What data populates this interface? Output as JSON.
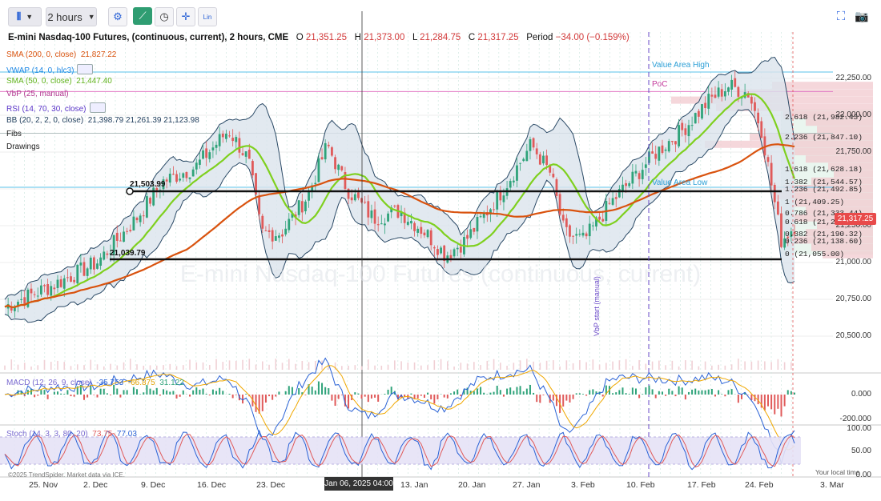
{
  "toolbar": {
    "interval": "2 hours",
    "lin_label": "Lin"
  },
  "title": {
    "symbol": "E-mini Nasdaq-100 Futures, (continuous, current), 2 hours, CME",
    "o_label": "O",
    "o_value": "21,351.25",
    "h_label": "H",
    "h_value": "21,373.00",
    "l_label": "L",
    "l_value": "21,284.75",
    "c_label": "C",
    "c_value": "21,317.25",
    "period_label": "Period",
    "period_value": "−34.00 (−0.159%)"
  },
  "legends": {
    "sma200": "SMA (200, 0, close)",
    "sma200_value": "21,827.22",
    "vwap": "VWAP (14, 0, hlc3)",
    "sma50": "SMA (50, 0, close)",
    "sma50_value": "21,447.40",
    "vbp": "VbP (25, manual)",
    "rsi": "RSI (14, 70, 30, close)",
    "bb": "BB (20, 2, 2, 0, close)",
    "bb_values": "21,398.79  21,261.39  21,123.98",
    "fibs": "Fibs",
    "drawings": "Drawings"
  },
  "watermark": "E-mini Nasdaq-100 Futures (continuous, current)",
  "annotations": {
    "vah": "Value Area High",
    "poc": "PoC",
    "val": "Value Area Low",
    "vbp_start": "VbP start (manual)",
    "level_high": "21,503.99",
    "level_low": "21,039.79"
  },
  "fibs": [
    {
      "label": "2.618 (21,982.43)",
      "price": 21982.43
    },
    {
      "label": "2.236 (21,847.10)",
      "price": 21847.1
    },
    {
      "label": "1.618 (21,628.18)",
      "price": 21628.18
    },
    {
      "label": "1.382 (21,544.57)",
      "price": 21544.57
    },
    {
      "label": "1.236 (21,492.85)",
      "price": 21492.85
    },
    {
      "label": "1 (21,409.25)",
      "price": 21409.25
    },
    {
      "label": "0.786 (21,333.44)",
      "price": 21333.44
    },
    {
      "label": "0.618 (21,273.92)",
      "price": 21273.92
    },
    {
      "label": "0.382 (21,190.32)",
      "price": 21190.32
    },
    {
      "label": "0.236 (21,138.60)",
      "price": 21138.6
    },
    {
      "label": "0 (21,055.00)",
      "price": 21055.0
    }
  ],
  "price_axis": [
    "22,250.00",
    "22,000.00",
    "21,750.00",
    "21,250.00",
    "21,000.00",
    "20,750.00",
    "20,500.00"
  ],
  "last_price": "21,317.25",
  "macd": {
    "label": "MACD (12, 26, 9, close)",
    "v1": "-35.753",
    "v2": "-66.875",
    "v3": "31.122",
    "axis": [
      "0.000",
      "-200.000"
    ]
  },
  "stoch": {
    "label": "Stoch (14, 3, 3, 80, 20)",
    "v1": "73.75",
    "v2": "77.03",
    "axis": [
      "100.00",
      "50.00",
      "0.00"
    ]
  },
  "time_axis": [
    "25. Nov",
    "2. Dec",
    "9. Dec",
    "16. Dec",
    "23. Dec",
    "13. Jan",
    "20. Jan",
    "27. Jan",
    "3. Feb",
    "10. Feb",
    "17. Feb",
    "24. Feb",
    "3. Mar"
  ],
  "cursor_time": "Jan 06, 2025 04:00",
  "credit": "©2025 TrendSpider. Market data via ICE.",
  "local_time": "Your local time",
  "colors": {
    "up": "#2fa37a",
    "down": "#e05a5a",
    "sma50": "#7fd01f",
    "sma200": "#d9530f",
    "vwap": "#2196f3",
    "bb_fill": "#dbe4ec",
    "bb_line": "#2b4a66",
    "rsi": "#6b3fd6"
  }
}
